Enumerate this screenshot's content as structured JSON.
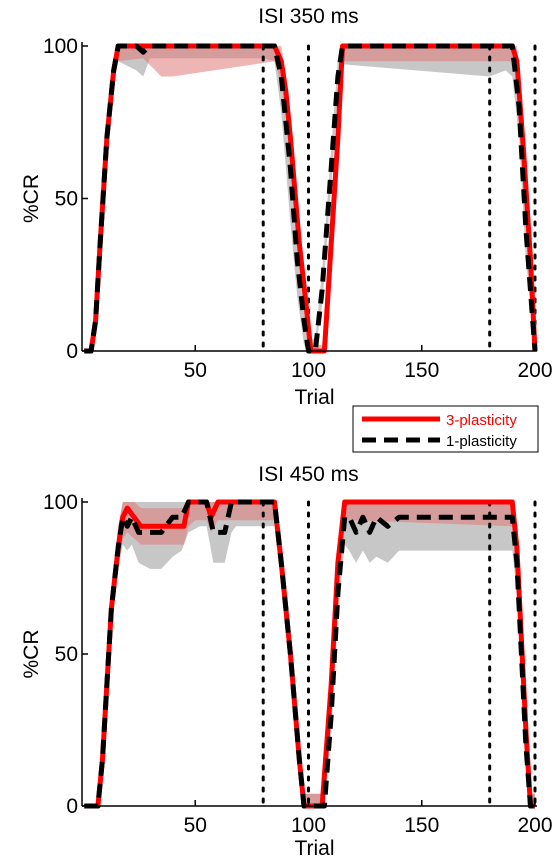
{
  "colors": {
    "three_plasticity": "#ff0000",
    "one_plasticity": "#000000",
    "three_band": "#e07878",
    "one_band": "#b4b4b4",
    "vline": "#000000"
  },
  "legend": {
    "items": [
      {
        "label": "3-plasticity",
        "color": "#ff0000",
        "style": "solid"
      },
      {
        "label": "1-plasticity",
        "color": "#000000",
        "style": "dashed"
      }
    ]
  },
  "chart_data": [
    {
      "type": "line",
      "title": "ISI 350 ms",
      "xlabel": "Trial",
      "ylabel": "%CR",
      "xlim": [
        0,
        200
      ],
      "ylim": [
        0,
        100
      ],
      "xticks": [
        50,
        100,
        150,
        200
      ],
      "yticks": [
        0,
        50,
        100
      ],
      "vlines": [
        80,
        100,
        180,
        200
      ],
      "series": [
        {
          "name": "3-plasticity",
          "x": [
            1,
            4,
            6,
            8,
            11,
            14,
            16,
            27,
            35,
            40,
            85,
            88,
            90,
            92,
            96,
            99,
            101,
            104,
            107,
            113,
            115,
            190,
            192,
            195,
            198,
            200
          ],
          "y": [
            0,
            0,
            10,
            35,
            70,
            92,
            100,
            100,
            100,
            100,
            100,
            95,
            85,
            70,
            35,
            15,
            0,
            0,
            0,
            70,
            100,
            100,
            95,
            65,
            30,
            0
          ],
          "band_low": [
            0,
            0,
            8,
            32,
            66,
            88,
            95,
            96,
            90,
            90,
            95,
            88,
            78,
            62,
            28,
            10,
            0,
            0,
            0,
            65,
            95,
            95,
            90,
            60,
            25,
            0
          ],
          "band_high": [
            0,
            0,
            12,
            38,
            74,
            96,
            100,
            100,
            100,
            100,
            100,
            100,
            90,
            76,
            42,
            20,
            2,
            2,
            2,
            75,
            100,
            100,
            100,
            70,
            35,
            2
          ]
        },
        {
          "name": "1-plasticity",
          "x": [
            1,
            4,
            6,
            8,
            11,
            14,
            16,
            24,
            27,
            30,
            33,
            35,
            40,
            80,
            85,
            88,
            90,
            92,
            95,
            98,
            100,
            101,
            103,
            106,
            110,
            113,
            115,
            180,
            187,
            190,
            193,
            196,
            200
          ],
          "y": [
            0,
            0,
            10,
            35,
            70,
            92,
            100,
            100,
            98,
            100,
            100,
            100,
            100,
            100,
            100,
            90,
            75,
            60,
            30,
            10,
            0,
            0,
            0,
            20,
            60,
            90,
            100,
            100,
            100,
            100,
            80,
            40,
            0
          ],
          "band_low": [
            0,
            0,
            8,
            32,
            66,
            88,
            95,
            92,
            90,
            96,
            96,
            96,
            96,
            96,
            95,
            78,
            60,
            42,
            18,
            2,
            0,
            0,
            0,
            15,
            54,
            84,
            94,
            90,
            92,
            90,
            70,
            30,
            0
          ],
          "band_high": [
            0,
            0,
            12,
            38,
            74,
            96,
            100,
            100,
            100,
            100,
            100,
            100,
            100,
            100,
            100,
            96,
            86,
            72,
            42,
            18,
            4,
            4,
            4,
            26,
            66,
            96,
            100,
            100,
            100,
            100,
            90,
            50,
            4
          ]
        }
      ]
    },
    {
      "type": "line",
      "title": "ISI 450 ms",
      "xlabel": "Trial",
      "ylabel": "%CR",
      "xlim": [
        0,
        200
      ],
      "ylim": [
        0,
        100
      ],
      "xticks": [
        50,
        100,
        150,
        200
      ],
      "yticks": [
        0,
        50,
        100
      ],
      "vlines": [
        80,
        100,
        180,
        200
      ],
      "series": [
        {
          "name": "3-plasticity",
          "x": [
            1,
            7,
            9,
            11,
            13,
            16,
            18,
            20,
            23,
            26,
            30,
            35,
            40,
            45,
            47,
            50,
            55,
            57,
            60,
            63,
            85,
            88,
            92,
            96,
            98,
            102,
            106,
            110,
            113,
            116,
            120,
            190,
            192,
            194,
            196,
            198,
            200
          ],
          "y": [
            0,
            0,
            15,
            40,
            65,
            85,
            95,
            98,
            95,
            92,
            92,
            92,
            92,
            92,
            100,
            100,
            100,
            95,
            100,
            100,
            100,
            80,
            50,
            15,
            0,
            0,
            0,
            40,
            80,
            100,
            100,
            100,
            85,
            55,
            25,
            0,
            0
          ],
          "band_low": [
            0,
            0,
            10,
            34,
            58,
            78,
            88,
            90,
            88,
            86,
            86,
            86,
            86,
            86,
            92,
            94,
            94,
            90,
            94,
            94,
            94,
            74,
            44,
            10,
            0,
            0,
            0,
            34,
            74,
            94,
            94,
            92,
            78,
            48,
            20,
            0,
            0
          ],
          "band_high": [
            0,
            0,
            20,
            46,
            72,
            92,
            100,
            100,
            100,
            98,
            98,
            98,
            98,
            98,
            100,
            100,
            100,
            100,
            100,
            100,
            100,
            86,
            56,
            20,
            4,
            4,
            4,
            46,
            86,
            100,
            100,
            100,
            92,
            62,
            30,
            4,
            4
          ]
        },
        {
          "name": "1-plasticity",
          "x": [
            1,
            7,
            9,
            11,
            13,
            16,
            18,
            20,
            22,
            25,
            30,
            35,
            40,
            44,
            47,
            52,
            55,
            58,
            60,
            63,
            66,
            68,
            72,
            85,
            88,
            92,
            96,
            98,
            103,
            107,
            110,
            113,
            116,
            118,
            121,
            124,
            127,
            130,
            135,
            140,
            160,
            180,
            190,
            192,
            194,
            196,
            198,
            200
          ],
          "y": [
            0,
            0,
            15,
            40,
            65,
            85,
            95,
            92,
            95,
            90,
            90,
            90,
            95,
            95,
            100,
            100,
            100,
            90,
            90,
            90,
            100,
            100,
            100,
            100,
            80,
            50,
            15,
            0,
            0,
            0,
            30,
            70,
            95,
            95,
            90,
            95,
            90,
            95,
            92,
            95,
            95,
            95,
            95,
            80,
            50,
            20,
            0,
            0
          ],
          "band_low": [
            0,
            0,
            10,
            34,
            58,
            78,
            86,
            84,
            86,
            80,
            78,
            78,
            82,
            84,
            90,
            92,
            92,
            80,
            80,
            80,
            90,
            92,
            92,
            92,
            72,
            42,
            8,
            0,
            0,
            0,
            24,
            62,
            86,
            84,
            80,
            84,
            80,
            82,
            80,
            84,
            84,
            84,
            84,
            70,
            40,
            12,
            0,
            0
          ],
          "band_high": [
            0,
            0,
            20,
            46,
            72,
            92,
            100,
            100,
            100,
            100,
            100,
            100,
            100,
            100,
            100,
            100,
            100,
            100,
            100,
            100,
            100,
            100,
            100,
            100,
            88,
            58,
            22,
            4,
            4,
            4,
            36,
            78,
            100,
            100,
            100,
            100,
            100,
            100,
            100,
            100,
            100,
            100,
            100,
            90,
            60,
            28,
            4,
            4
          ]
        }
      ]
    }
  ]
}
